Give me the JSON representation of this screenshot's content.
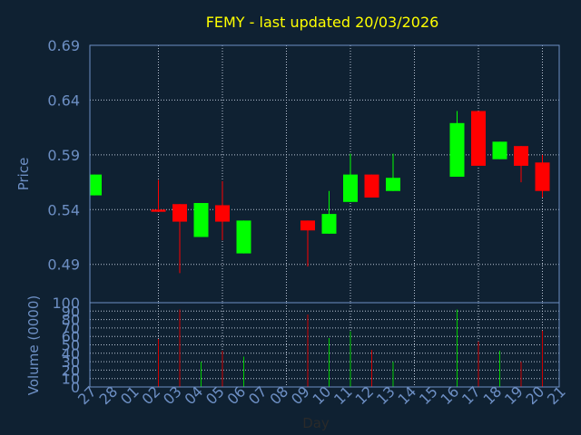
{
  "chart_data": {
    "type": "candlestick",
    "title": "FEMY - last updated 20/03/2026",
    "xlabel": "Day",
    "price_panel": {
      "ylabel": "Price",
      "ylim": [
        0.455,
        0.69
      ],
      "yticks": [
        "0.69",
        "0.64",
        "0.59",
        "0.54",
        "0.49"
      ],
      "ytick_values": [
        0.69,
        0.64,
        0.59,
        0.54,
        0.49
      ],
      "grid": true
    },
    "volume_panel": {
      "ylabel": "Volume (0000)",
      "ylim": [
        0,
        100
      ],
      "yticks": [
        "100",
        "90",
        "80",
        "70",
        "60",
        "50",
        "40",
        "30",
        "20",
        "10",
        "0"
      ],
      "ytick_values": [
        100,
        90,
        80,
        70,
        60,
        50,
        40,
        30,
        20,
        10,
        0
      ],
      "grid": true
    },
    "x_ticks": [
      "27",
      "28",
      "01",
      "02",
      "03",
      "04",
      "05",
      "06",
      "07",
      "08",
      "09",
      "10",
      "11",
      "12",
      "13",
      "14",
      "15",
      "16",
      "17",
      "18",
      "19",
      "20",
      "21"
    ],
    "candles": [
      {
        "day": "27",
        "open": 0.553,
        "close": 0.572,
        "high": 0.572,
        "low": 0.553,
        "volume": 0
      },
      {
        "day": "02",
        "open": 0.54,
        "close": 0.538,
        "high": 0.567,
        "low": 0.538,
        "volume": 57
      },
      {
        "day": "03",
        "open": 0.545,
        "close": 0.529,
        "high": 0.545,
        "low": 0.482,
        "volume": 92
      },
      {
        "day": "04",
        "open": 0.515,
        "close": 0.546,
        "high": 0.546,
        "low": 0.515,
        "volume": 30
      },
      {
        "day": "05",
        "open": 0.544,
        "close": 0.529,
        "high": 0.566,
        "low": 0.512,
        "volume": 43
      },
      {
        "day": "06",
        "open": 0.5,
        "close": 0.53,
        "high": 0.53,
        "low": 0.5,
        "volume": 36
      },
      {
        "day": "09",
        "open": 0.53,
        "close": 0.521,
        "high": 0.53,
        "low": 0.488,
        "volume": 86
      },
      {
        "day": "10",
        "open": 0.518,
        "close": 0.536,
        "high": 0.557,
        "low": 0.518,
        "volume": 58
      },
      {
        "day": "11",
        "open": 0.547,
        "close": 0.572,
        "high": 0.591,
        "low": 0.547,
        "volume": 66
      },
      {
        "day": "12",
        "open": 0.572,
        "close": 0.551,
        "high": 0.572,
        "low": 0.551,
        "volume": 44
      },
      {
        "day": "13",
        "open": 0.557,
        "close": 0.569,
        "high": 0.591,
        "low": 0.557,
        "volume": 30
      },
      {
        "day": "16",
        "open": 0.57,
        "close": 0.619,
        "high": 0.63,
        "low": 0.57,
        "volume": 92
      },
      {
        "day": "17",
        "open": 0.63,
        "close": 0.58,
        "high": 0.63,
        "low": 0.58,
        "volume": 54
      },
      {
        "day": "18",
        "open": 0.586,
        "close": 0.602,
        "high": 0.602,
        "low": 0.586,
        "volume": 43
      },
      {
        "day": "19",
        "open": 0.598,
        "close": 0.58,
        "high": 0.598,
        "low": 0.565,
        "volume": 30
      },
      {
        "day": "20",
        "open": 0.583,
        "close": 0.557,
        "high": 0.59,
        "low": 0.551,
        "volume": 67
      }
    ],
    "colors": {
      "background": "#0f2132",
      "axis": "#6d8fc4",
      "grid": "#b9c4d4",
      "title": "#ffff00",
      "up": "#00ff00",
      "down": "#ff0000",
      "up_volume": "#00cc00",
      "down_volume": "#cc0000"
    }
  }
}
